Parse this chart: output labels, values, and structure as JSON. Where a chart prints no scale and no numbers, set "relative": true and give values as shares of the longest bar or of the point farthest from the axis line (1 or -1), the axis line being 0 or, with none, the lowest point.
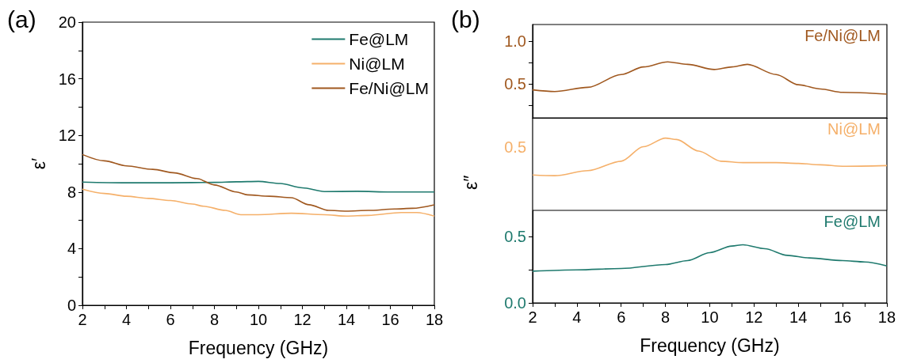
{
  "chart_data": [
    {
      "type": "line",
      "title": "(a)",
      "xlabel": "Frequency (GHz)",
      "ylabel": "ε′",
      "xlim": [
        2,
        18
      ],
      "ylim": [
        0,
        20
      ],
      "xticks": [
        2,
        {
          "value": 3,
          "label": null
        },
        4,
        {
          "value": 5,
          "label": null
        },
        6,
        {
          "value": 7,
          "label": null
        },
        8,
        {
          "value": 9,
          "label": null
        },
        10,
        {
          "value": 11,
          "label": null
        },
        12,
        {
          "value": 13,
          "label": null
        },
        14,
        {
          "value": 15,
          "label": null
        },
        16,
        {
          "value": 17,
          "label": null
        },
        18
      ],
      "yticks": [
        0,
        {
          "value": 2,
          "label": null
        },
        4,
        {
          "value": 6,
          "label": null
        },
        8,
        {
          "value": 10,
          "label": null
        },
        12,
        {
          "value": 14,
          "label": null
        },
        16,
        {
          "value": 18,
          "label": null
        },
        20
      ],
      "grid": false,
      "legend": "top right",
      "marker": "none",
      "line_style": "solid",
      "series": [
        {
          "name": "Fe@LM",
          "color": "#1f7a6e",
          "x": [
            2,
            4,
            6,
            8,
            9,
            10,
            11,
            12,
            13,
            14.5,
            16,
            18
          ],
          "values": [
            8.7,
            8.65,
            8.65,
            8.68,
            8.72,
            8.75,
            8.6,
            8.3,
            8.03,
            8.05,
            8.0,
            8.0
          ]
        },
        {
          "name": "Ni@LM",
          "color": "#f5b06a",
          "x": [
            2,
            3,
            4,
            5,
            6,
            7,
            7.5,
            8.5,
            9.2,
            10,
            11.5,
            13,
            14,
            15,
            16.5,
            17.2,
            18
          ],
          "values": [
            8.2,
            7.9,
            7.7,
            7.55,
            7.4,
            7.15,
            7.0,
            6.7,
            6.4,
            6.4,
            6.5,
            6.4,
            6.3,
            6.35,
            6.55,
            6.55,
            6.3
          ]
        },
        {
          "name": "Fe/Ni@LM",
          "color": "#a0581f",
          "x": [
            2,
            3,
            4,
            5.2,
            6.2,
            7.2,
            8,
            9,
            9.5,
            10.5,
            11.5,
            12.3,
            13.2,
            14,
            15,
            16.2,
            17,
            18
          ],
          "values": [
            10.65,
            10.2,
            9.85,
            9.6,
            9.35,
            8.95,
            8.5,
            8.0,
            7.8,
            7.7,
            7.6,
            7.1,
            6.7,
            6.65,
            6.7,
            6.8,
            6.85,
            7.1
          ]
        }
      ]
    },
    {
      "type": "line",
      "title": "(b)",
      "xlim": [
        2,
        18
      ],
      "ylim": [
        0.1,
        1.2
      ],
      "xticks": [
        2,
        {
          "value": 3,
          "label": null
        },
        4,
        {
          "value": 5,
          "label": null
        },
        6,
        {
          "value": 7,
          "label": null
        },
        8,
        {
          "value": 9,
          "label": null
        },
        10,
        {
          "value": 11,
          "label": null
        },
        12,
        {
          "value": 13,
          "label": null
        },
        14,
        {
          "value": 15,
          "label": null
        },
        16,
        {
          "value": 17,
          "label": null
        },
        18
      ],
      "yticks": [
        {
          "value": 0.25,
          "label": null
        },
        {
          "value": 0.5,
          "label": "0.5"
        },
        {
          "value": 0.75,
          "label": null
        },
        {
          "value": 1,
          "label": "1.0"
        }
      ],
      "tick_labels": "y",
      "grid": false,
      "legend": false,
      "marker": "none",
      "line_style": "solid",
      "series": [
        {
          "name": "Fe/Ni@LM",
          "color": "#a0581f",
          "x": [
            2,
            3,
            4.5,
            6,
            7,
            8.1,
            9,
            10.2,
            11,
            11.7,
            13,
            14,
            15,
            16,
            18
          ],
          "values": [
            0.43,
            0.41,
            0.46,
            0.61,
            0.7,
            0.76,
            0.73,
            0.67,
            0.7,
            0.73,
            0.61,
            0.49,
            0.44,
            0.4,
            0.38
          ]
        }
      ]
    },
    {
      "type": "line",
      "ylabel": "ε″",
      "xlim": [
        2,
        18
      ],
      "relative": true,
      "annotations": [
        "0.5"
      ],
      "xticks": [
        2,
        {
          "value": 3,
          "label": null
        },
        4,
        {
          "value": 5,
          "label": null
        },
        6,
        {
          "value": 7,
          "label": null
        },
        8,
        {
          "value": 9,
          "label": null
        },
        10,
        {
          "value": 11,
          "label": null
        },
        12,
        {
          "value": 13,
          "label": null
        },
        14,
        {
          "value": 15,
          "label": null
        },
        16,
        {
          "value": 17,
          "label": null
        },
        18
      ],
      "tick_labels": "y",
      "grid": false,
      "legend": false,
      "marker": "none",
      "line_style": "solid",
      "series": [
        {
          "name": "Ni@LM",
          "color": "#f5b06a",
          "x": [
            2,
            3,
            4.5,
            6,
            7,
            8,
            8.5,
            9.5,
            10.5,
            11.5,
            13,
            14,
            15,
            16,
            18
          ],
          "values": [
            0.49,
            0.48,
            0.55,
            0.68,
            0.88,
            1,
            0.98,
            0.82,
            0.68,
            0.66,
            0.66,
            0.65,
            0.63,
            0.61,
            0.62
          ]
        }
      ]
    },
    {
      "type": "line",
      "xlabel": "Frequency (GHz)",
      "xlim": [
        2,
        18
      ],
      "ylim": [
        0,
        0.7
      ],
      "xticks": [
        2,
        {
          "value": 3,
          "label": null
        },
        4,
        {
          "value": 5,
          "label": null
        },
        6,
        {
          "value": 7,
          "label": null
        },
        8,
        {
          "value": 9,
          "label": null
        },
        10,
        {
          "value": 11,
          "label": null
        },
        12,
        {
          "value": 13,
          "label": null
        },
        14,
        {
          "value": 15,
          "label": null
        },
        16,
        {
          "value": 17,
          "label": null
        },
        18
      ],
      "yticks": [
        {
          "value": 0,
          "label": "0.0"
        },
        {
          "value": 0.25,
          "label": null
        },
        {
          "value": 0.5,
          "label": "0.5"
        }
      ],
      "grid": false,
      "legend": false,
      "marker": "none",
      "line_style": "solid",
      "series": [
        {
          "name": "Fe@LM",
          "color": "#1f7a6e",
          "x": [
            2,
            4,
            6,
            8,
            9,
            10,
            11,
            11.5,
            12.5,
            13.5,
            14.5,
            16,
            17,
            18
          ],
          "values": [
            0.24,
            0.25,
            0.26,
            0.29,
            0.32,
            0.38,
            0.43,
            0.44,
            0.41,
            0.36,
            0.34,
            0.32,
            0.31,
            0.28
          ]
        }
      ]
    }
  ]
}
